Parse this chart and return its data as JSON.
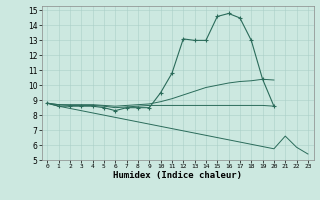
{
  "title": "",
  "xlabel": "Humidex (Indice chaleur)",
  "ylabel": "",
  "bg_color": "#cce8e0",
  "grid_color": "#aacfc8",
  "line_color": "#2a6b5a",
  "xlim": [
    -0.5,
    23.5
  ],
  "ylim": [
    5,
    15.3
  ],
  "xticks": [
    0,
    1,
    2,
    3,
    4,
    5,
    6,
    7,
    8,
    9,
    10,
    11,
    12,
    13,
    14,
    15,
    16,
    17,
    18,
    19,
    20,
    21,
    22,
    23
  ],
  "yticks": [
    5,
    6,
    7,
    8,
    9,
    10,
    11,
    12,
    13,
    14,
    15
  ],
  "series": [
    {
      "x": [
        0,
        1,
        2,
        3,
        4,
        5,
        6,
        7,
        8,
        9,
        10,
        11,
        12,
        13,
        14,
        15,
        16,
        17,
        18,
        19,
        20
      ],
      "y": [
        8.8,
        8.6,
        8.6,
        8.6,
        8.6,
        8.5,
        8.3,
        8.5,
        8.5,
        8.5,
        9.5,
        10.8,
        13.1,
        13.0,
        13.0,
        14.6,
        14.8,
        14.5,
        13.0,
        10.4,
        8.6
      ],
      "marker": true
    },
    {
      "x": [
        0,
        1,
        2,
        3,
        4,
        5,
        6,
        7,
        8,
        9,
        10,
        11,
        12,
        13,
        14,
        15,
        16,
        17,
        18,
        19,
        20
      ],
      "y": [
        8.8,
        8.7,
        8.65,
        8.65,
        8.65,
        8.6,
        8.5,
        8.55,
        8.6,
        8.65,
        8.65,
        8.65,
        8.65,
        8.65,
        8.65,
        8.65,
        8.65,
        8.65,
        8.65,
        8.65,
        8.6
      ],
      "marker": false
    },
    {
      "x": [
        0,
        1,
        2,
        3,
        4,
        5,
        6,
        7,
        8,
        9,
        10,
        11,
        12,
        13,
        14,
        15,
        16,
        17,
        18,
        19,
        20,
        21,
        22,
        23
      ],
      "y": [
        8.8,
        8.6,
        8.45,
        8.3,
        8.15,
        8.0,
        7.85,
        7.7,
        7.55,
        7.4,
        7.25,
        7.1,
        6.95,
        6.8,
        6.65,
        6.5,
        6.35,
        6.2,
        6.05,
        5.9,
        5.75,
        6.6,
        5.85,
        5.4
      ],
      "marker": false
    },
    {
      "x": [
        0,
        1,
        2,
        3,
        4,
        5,
        6,
        7,
        8,
        9,
        10,
        11,
        12,
        13,
        14,
        15,
        16,
        17,
        18,
        19,
        20
      ],
      "y": [
        8.8,
        8.7,
        8.7,
        8.7,
        8.7,
        8.65,
        8.6,
        8.65,
        8.7,
        8.75,
        8.9,
        9.1,
        9.35,
        9.6,
        9.85,
        10.0,
        10.15,
        10.25,
        10.3,
        10.4,
        10.35
      ],
      "marker": false
    }
  ]
}
